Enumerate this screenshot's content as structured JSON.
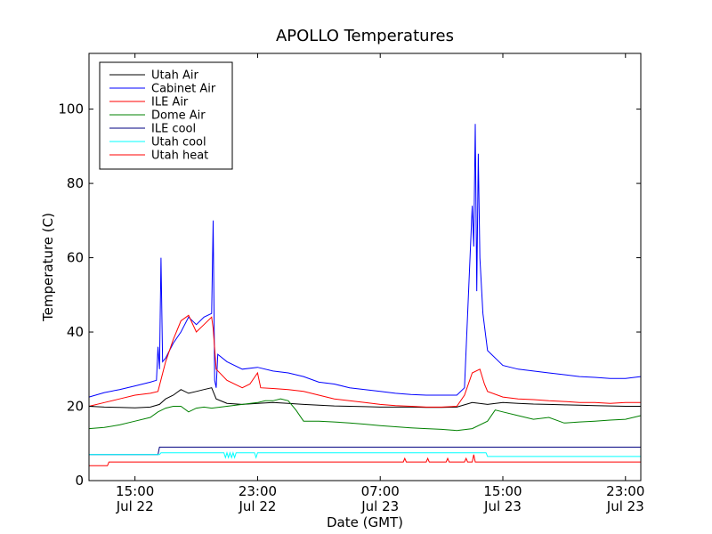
{
  "chart_data": {
    "type": "line",
    "title": "APOLLO Temperatures",
    "xlabel": "Date (GMT)",
    "ylabel": "Temperature (C)",
    "xlim": [
      0,
      36
    ],
    "ylim": [
      0,
      115
    ],
    "x_ticks": [
      {
        "x": 3,
        "line1": "15:00",
        "line2": "Jul 22"
      },
      {
        "x": 11,
        "line1": "23:00",
        "line2": "Jul 22"
      },
      {
        "x": 19,
        "line1": "07:00",
        "line2": "Jul 23"
      },
      {
        "x": 27,
        "line1": "15:00",
        "line2": "Jul 23"
      },
      {
        "x": 35,
        "line1": "23:00",
        "line2": "Jul 23"
      }
    ],
    "y_ticks": [
      0,
      20,
      40,
      60,
      80,
      100
    ],
    "grid": false,
    "legend_position": "upper-left",
    "series": [
      {
        "name": "Utah Air",
        "color": "#000000",
        "points": [
          [
            0,
            20
          ],
          [
            1,
            19.8
          ],
          [
            2,
            19.7
          ],
          [
            3,
            19.6
          ],
          [
            4,
            19.8
          ],
          [
            4.6,
            20.5
          ],
          [
            5,
            22
          ],
          [
            5.5,
            23
          ],
          [
            6,
            24.5
          ],
          [
            6.5,
            23.5
          ],
          [
            7,
            24
          ],
          [
            7.5,
            24.5
          ],
          [
            8,
            25
          ],
          [
            8.3,
            22
          ],
          [
            9,
            20.8
          ],
          [
            10,
            20.5
          ],
          [
            11,
            20.8
          ],
          [
            12,
            21
          ],
          [
            13,
            20.8
          ],
          [
            14,
            20.5
          ],
          [
            15,
            20.3
          ],
          [
            16,
            20.1
          ],
          [
            17,
            20
          ],
          [
            18,
            19.9
          ],
          [
            19,
            19.8
          ],
          [
            20,
            19.8
          ],
          [
            21,
            19.8
          ],
          [
            22,
            19.7
          ],
          [
            23,
            19.7
          ],
          [
            24,
            19.8
          ],
          [
            25,
            21
          ],
          [
            26,
            20.5
          ],
          [
            27,
            21
          ],
          [
            28,
            20.8
          ],
          [
            29,
            20.6
          ],
          [
            30,
            20.5
          ],
          [
            31,
            20.4
          ],
          [
            32,
            20.3
          ],
          [
            33,
            20.2
          ],
          [
            34,
            20.1
          ],
          [
            35,
            20
          ],
          [
            36,
            20
          ]
        ]
      },
      {
        "name": "Cabinet Air",
        "color": "#0000ff",
        "points": [
          [
            0,
            22.5
          ],
          [
            1,
            23.7
          ],
          [
            2,
            24.5
          ],
          [
            3,
            25.5
          ],
          [
            4,
            26.5
          ],
          [
            4.4,
            27
          ],
          [
            4.5,
            36
          ],
          [
            4.6,
            30
          ],
          [
            4.7,
            60
          ],
          [
            4.8,
            32
          ],
          [
            5,
            33
          ],
          [
            5.5,
            37
          ],
          [
            6,
            40
          ],
          [
            6.5,
            44
          ],
          [
            7,
            42
          ],
          [
            7.5,
            44
          ],
          [
            8,
            45
          ],
          [
            8.1,
            70
          ],
          [
            8.2,
            27
          ],
          [
            8.3,
            25
          ],
          [
            8.4,
            34
          ],
          [
            9,
            32
          ],
          [
            10,
            30
          ],
          [
            11,
            30.5
          ],
          [
            12,
            29.5
          ],
          [
            13,
            29
          ],
          [
            14,
            28
          ],
          [
            15,
            26.5
          ],
          [
            16,
            26
          ],
          [
            17,
            25
          ],
          [
            18,
            24.5
          ],
          [
            19,
            24
          ],
          [
            20,
            23.5
          ],
          [
            21,
            23.2
          ],
          [
            22,
            23
          ],
          [
            23,
            23
          ],
          [
            24,
            23
          ],
          [
            24.5,
            25
          ],
          [
            25,
            74
          ],
          [
            25.1,
            63
          ],
          [
            25.2,
            96
          ],
          [
            25.3,
            51
          ],
          [
            25.4,
            88
          ],
          [
            25.5,
            60
          ],
          [
            25.7,
            45
          ],
          [
            26,
            35
          ],
          [
            27,
            31
          ],
          [
            28,
            30
          ],
          [
            29,
            29.5
          ],
          [
            30,
            29
          ],
          [
            31,
            28.5
          ],
          [
            32,
            28
          ],
          [
            33,
            27.8
          ],
          [
            34,
            27.5
          ],
          [
            35,
            27.5
          ],
          [
            36,
            28
          ]
        ]
      },
      {
        "name": "ILE Air",
        "color": "#ff0000",
        "points": [
          [
            0,
            20
          ],
          [
            1,
            21
          ],
          [
            2,
            22
          ],
          [
            3,
            23
          ],
          [
            4,
            23.5
          ],
          [
            4.5,
            24
          ],
          [
            5,
            32
          ],
          [
            5.5,
            38
          ],
          [
            6,
            43
          ],
          [
            6.5,
            44.5
          ],
          [
            7,
            40
          ],
          [
            7.5,
            42
          ],
          [
            8,
            44
          ],
          [
            8.1,
            41
          ],
          [
            8.3,
            30
          ],
          [
            9,
            27
          ],
          [
            10,
            25
          ],
          [
            10.5,
            26
          ],
          [
            11,
            29
          ],
          [
            11.2,
            25
          ],
          [
            12,
            24.8
          ],
          [
            13,
            24.5
          ],
          [
            14,
            24
          ],
          [
            15,
            23
          ],
          [
            16,
            22
          ],
          [
            17,
            21.5
          ],
          [
            18,
            21
          ],
          [
            19,
            20.5
          ],
          [
            20,
            20.2
          ],
          [
            21,
            20
          ],
          [
            22,
            19.8
          ],
          [
            23,
            19.8
          ],
          [
            24,
            20
          ],
          [
            24.5,
            23
          ],
          [
            25,
            29
          ],
          [
            25.5,
            30
          ],
          [
            25.8,
            26
          ],
          [
            26,
            24
          ],
          [
            27,
            22.5
          ],
          [
            28,
            22
          ],
          [
            29,
            21.8
          ],
          [
            30,
            21.5
          ],
          [
            31,
            21.3
          ],
          [
            32,
            21
          ],
          [
            33,
            21
          ],
          [
            34,
            20.8
          ],
          [
            35,
            21
          ],
          [
            36,
            21
          ]
        ]
      },
      {
        "name": "Dome Air",
        "color": "#008000",
        "points": [
          [
            0,
            14
          ],
          [
            1,
            14.3
          ],
          [
            2,
            15
          ],
          [
            3,
            16
          ],
          [
            4,
            17
          ],
          [
            4.5,
            18.5
          ],
          [
            5,
            19.5
          ],
          [
            5.5,
            20
          ],
          [
            6,
            20
          ],
          [
            6.5,
            18.5
          ],
          [
            7,
            19.5
          ],
          [
            7.5,
            19.8
          ],
          [
            8,
            19.5
          ],
          [
            9,
            20
          ],
          [
            10,
            20.5
          ],
          [
            11,
            21
          ],
          [
            11.5,
            21.5
          ],
          [
            12,
            21.5
          ],
          [
            12.5,
            22
          ],
          [
            13,
            21.5
          ],
          [
            13.5,
            19
          ],
          [
            14,
            16
          ],
          [
            15,
            16
          ],
          [
            16,
            15.8
          ],
          [
            17,
            15.5
          ],
          [
            18,
            15.2
          ],
          [
            19,
            14.8
          ],
          [
            20,
            14.5
          ],
          [
            21,
            14.2
          ],
          [
            22,
            14
          ],
          [
            23,
            13.8
          ],
          [
            24,
            13.5
          ],
          [
            25,
            14
          ],
          [
            26,
            16
          ],
          [
            26.5,
            19
          ],
          [
            27,
            18.5
          ],
          [
            28,
            17.5
          ],
          [
            29,
            16.5
          ],
          [
            30,
            17
          ],
          [
            31,
            15.5
          ],
          [
            32,
            15.8
          ],
          [
            33,
            16
          ],
          [
            34,
            16.3
          ],
          [
            35,
            16.5
          ],
          [
            36,
            17.5
          ]
        ]
      },
      {
        "name": "ILE cool",
        "color": "#000080",
        "points": [
          [
            0,
            7
          ],
          [
            4.5,
            7
          ],
          [
            4.6,
            9
          ],
          [
            36,
            9
          ]
        ]
      },
      {
        "name": "Utah cool",
        "color": "#00ffff",
        "points": [
          [
            0,
            7
          ],
          [
            4.6,
            7
          ],
          [
            4.7,
            7.5
          ],
          [
            8.8,
            7.5
          ],
          [
            8.9,
            6.2
          ],
          [
            9,
            7.5
          ],
          [
            9.1,
            6.2
          ],
          [
            9.2,
            7.5
          ],
          [
            9.3,
            6.2
          ],
          [
            9.4,
            7.5
          ],
          [
            9.5,
            6.2
          ],
          [
            9.6,
            7.5
          ],
          [
            10.8,
            7.5
          ],
          [
            10.9,
            6.2
          ],
          [
            11,
            7.5
          ],
          [
            24.8,
            7.5
          ],
          [
            24.9,
            7.5
          ],
          [
            25.6,
            7.5
          ],
          [
            25.9,
            7.5
          ],
          [
            26,
            6.5
          ],
          [
            36,
            6.5
          ]
        ]
      },
      {
        "name": "Utah heat",
        "color": "#ff0000",
        "points": [
          [
            0,
            4
          ],
          [
            1.2,
            4
          ],
          [
            1.3,
            5
          ],
          [
            20.5,
            5
          ],
          [
            20.6,
            6
          ],
          [
            20.7,
            5
          ],
          [
            22,
            5
          ],
          [
            22.1,
            6
          ],
          [
            22.2,
            5
          ],
          [
            23.3,
            5
          ],
          [
            23.4,
            6
          ],
          [
            23.5,
            5
          ],
          [
            24.5,
            5
          ],
          [
            24.6,
            6
          ],
          [
            24.7,
            5
          ],
          [
            25,
            5
          ],
          [
            25.1,
            7
          ],
          [
            25.2,
            5
          ],
          [
            36,
            5
          ]
        ]
      }
    ]
  }
}
